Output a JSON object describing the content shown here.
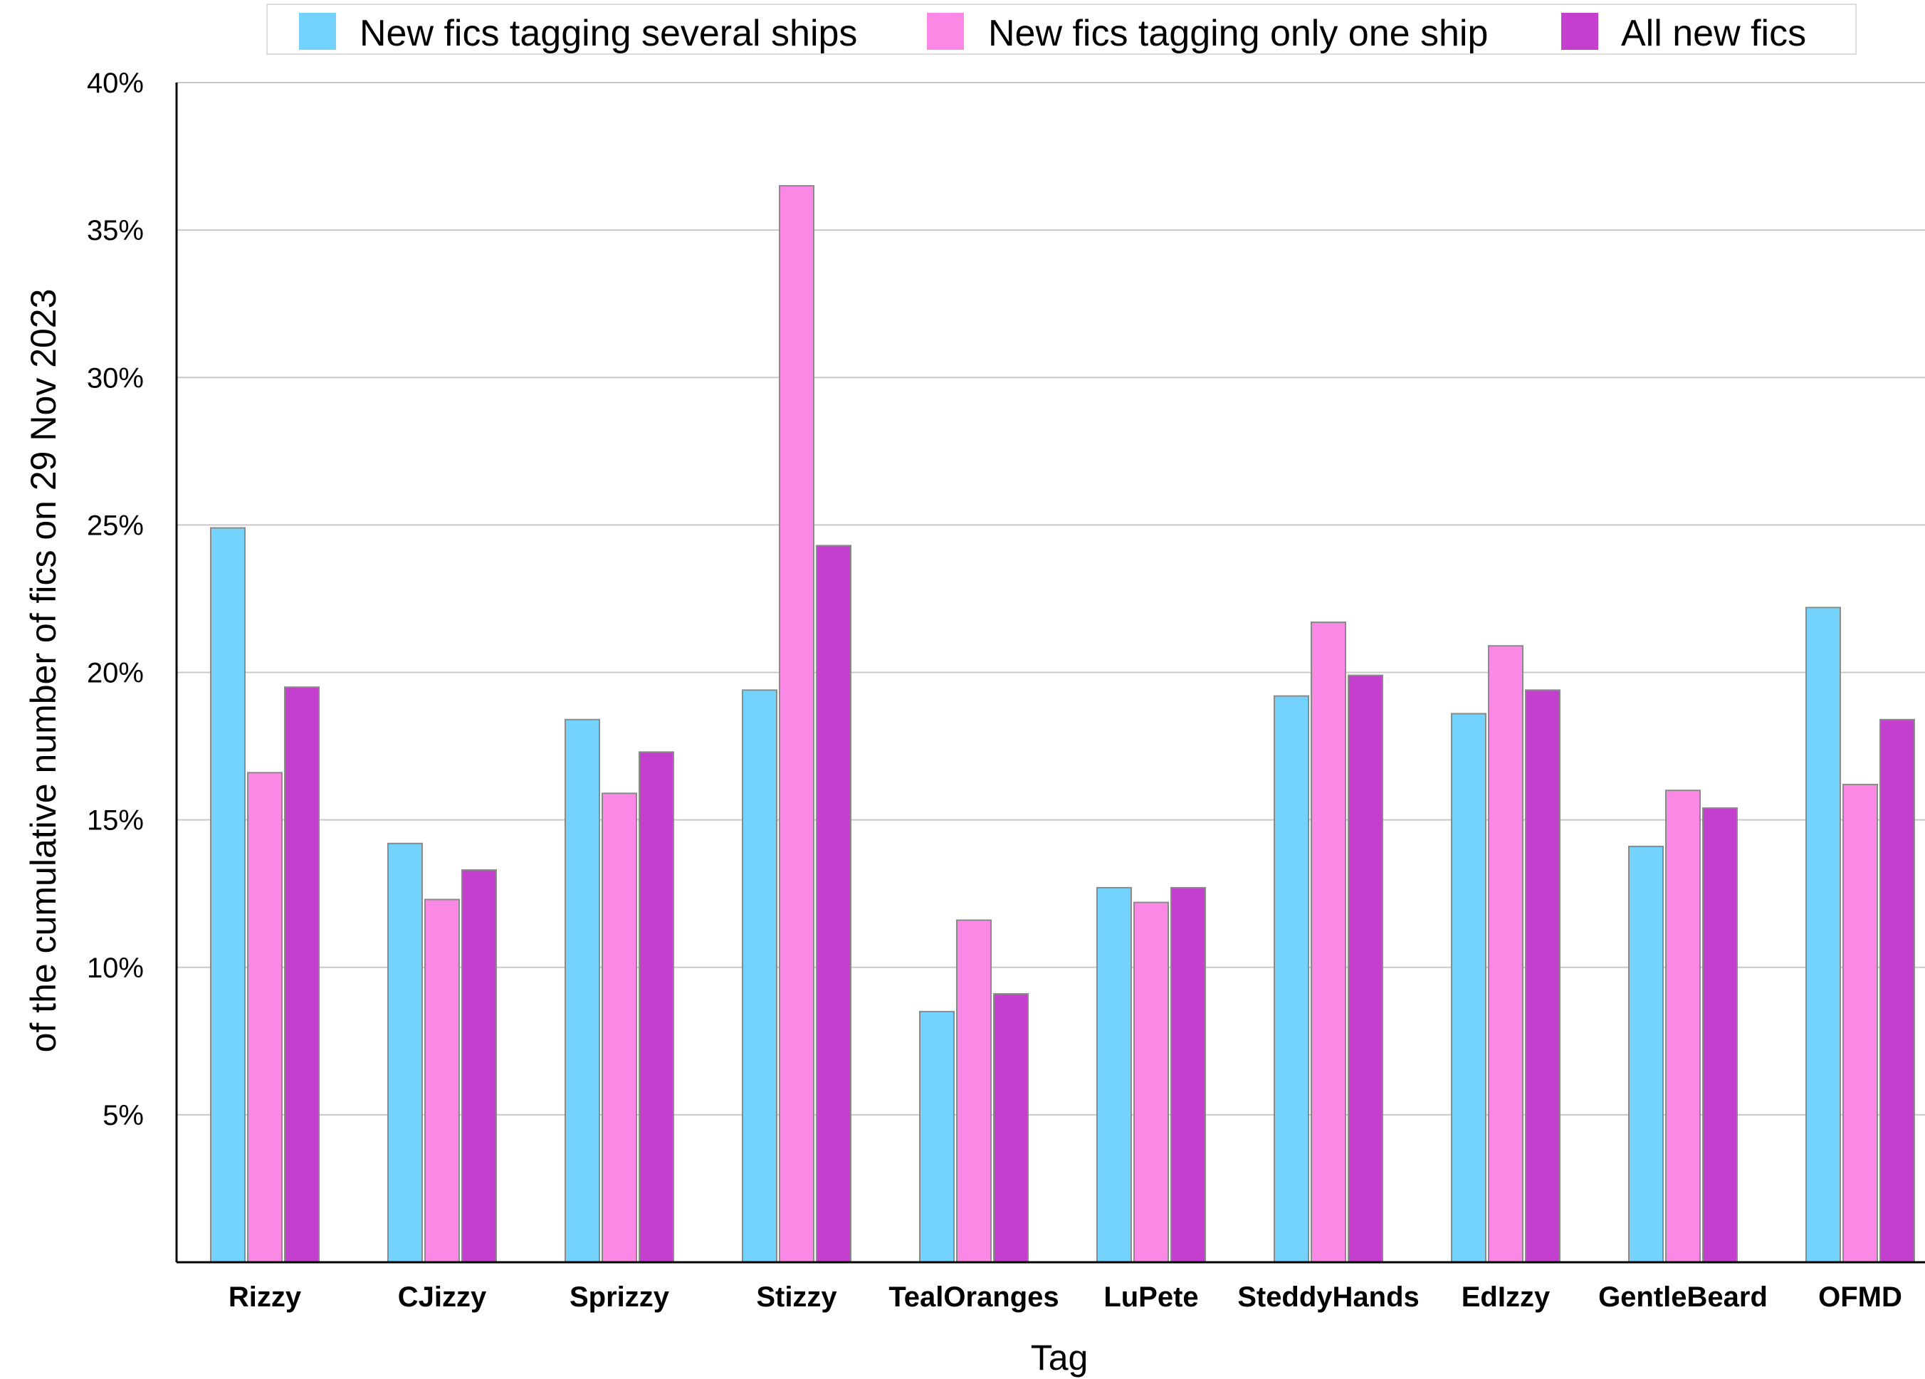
{
  "chart_data": {
    "type": "bar",
    "title": "",
    "xlabel": "Tag",
    "ylabel": "of the cumulative number of fics on 29 Nov 2023",
    "ylim": [
      0,
      40
    ],
    "yticks": [
      5,
      10,
      15,
      20,
      25,
      30,
      35,
      40
    ],
    "ytick_labels": [
      "5%",
      "10%",
      "15%",
      "20%",
      "25%",
      "30%",
      "35%",
      "40%"
    ],
    "grid": true,
    "legend_position": "top",
    "categories": [
      "Rizzy",
      "CJizzy",
      "Sprizzy",
      "Stizzy",
      "TealOranges",
      "LuPete",
      "SteddyHands",
      "EdIzzy",
      "GentleBeard",
      "OFMD"
    ],
    "series": [
      {
        "name": "New fics tagging several ships",
        "color": "#74d3fc",
        "values": [
          24.9,
          14.2,
          18.4,
          19.4,
          8.5,
          12.7,
          19.2,
          18.6,
          14.1,
          22.2
        ]
      },
      {
        "name": "New fics tagging only one ship",
        "color": "#fb88e5",
        "values": [
          16.6,
          12.3,
          15.9,
          36.5,
          11.6,
          12.2,
          21.7,
          20.9,
          16.0,
          16.2
        ]
      },
      {
        "name": "All new fics",
        "color": "#c53fce",
        "values": [
          19.5,
          13.3,
          17.3,
          24.3,
          9.1,
          12.7,
          19.9,
          19.4,
          15.4,
          18.4
        ]
      }
    ]
  }
}
